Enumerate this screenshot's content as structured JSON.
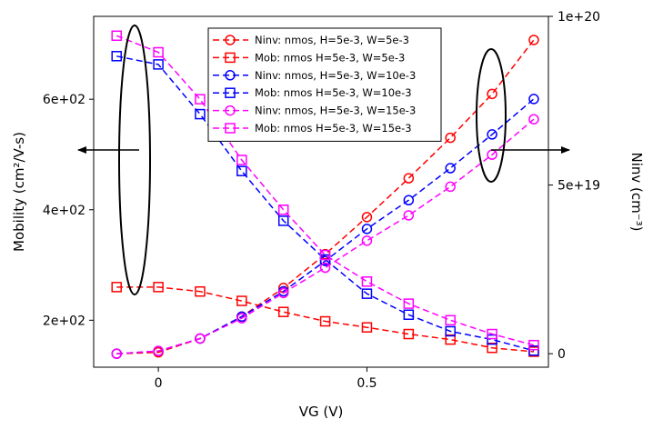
{
  "chart_data": {
    "type": "line",
    "x_axis": {
      "label": "VG (V)",
      "range": [
        -0.155,
        0.935
      ],
      "ticks": [
        0,
        0.5
      ],
      "tick_labels": [
        "0",
        "0.5"
      ]
    },
    "y_left": {
      "label": "Mobility (cm²/V-s)",
      "range": [
        115,
        750
      ],
      "ticks": [
        200,
        400,
        600
      ],
      "tick_labels": [
        "2e+02",
        "4e+02",
        "6e+02"
      ]
    },
    "y_right": {
      "label": "Ninv (cm⁻³)",
      "range": [
        -4e+18,
        1e+20
      ],
      "ticks": [
        0,
        5e+19,
        1e+20
      ],
      "tick_labels": [
        "0",
        "5e+19",
        "1e+20"
      ]
    },
    "grid": false,
    "legend_placement": "top-center",
    "series": [
      {
        "name": "Ninv: nmos, H=5e-3, W=5e-3",
        "axis": "right",
        "marker": "circle",
        "color": "#ff0000",
        "x": [
          -0.1,
          0,
          0.1,
          0.2,
          0.3,
          0.4,
          0.5,
          0.6,
          0.7,
          0.8,
          0.9
        ],
        "y": [
          0,
          4e+17,
          4.5e+18,
          1.1e+19,
          1.95e+19,
          2.95e+19,
          4.05e+19,
          5.2e+19,
          6.4e+19,
          7.7e+19,
          9.3e+19
        ]
      },
      {
        "name": "Mob: nmos H=5e-3, W=5e-3",
        "axis": "left",
        "marker": "square",
        "color": "#ff0000",
        "x": [
          -0.1,
          0,
          0.1,
          0.2,
          0.3,
          0.4,
          0.5,
          0.6,
          0.7,
          0.8,
          0.9
        ],
        "y": [
          260,
          260,
          252,
          235,
          215,
          198,
          187,
          175,
          165,
          150,
          143
        ]
      },
      {
        "name": "Ninv: nmos, H=5e-3, W=10e-3",
        "axis": "right",
        "marker": "circle",
        "color": "#0000ff",
        "x": [
          -0.1,
          0,
          0.1,
          0.2,
          0.3,
          0.4,
          0.5,
          0.6,
          0.7,
          0.8,
          0.9
        ],
        "y": [
          0,
          8e+17,
          4.5e+18,
          1.1e+19,
          1.85e+19,
          2.75e+19,
          3.7e+19,
          4.55e+19,
          5.5e+19,
          6.5e+19,
          7.55e+19
        ]
      },
      {
        "name": "Mob: nmos H=5e-3, W=10e-3",
        "axis": "left",
        "marker": "square",
        "color": "#0000ff",
        "x": [
          -0.1,
          0,
          0.1,
          0.2,
          0.3,
          0.4,
          0.5,
          0.6,
          0.7,
          0.8,
          0.9
        ],
        "y": [
          678,
          663,
          573,
          470,
          380,
          310,
          248,
          210,
          180,
          165,
          145
        ]
      },
      {
        "name": "Ninv: nmos, H=5e-3, W=15e-3",
        "axis": "right",
        "marker": "circle",
        "color": "#ff00ff",
        "x": [
          -0.1,
          0,
          0.1,
          0.2,
          0.3,
          0.4,
          0.5,
          0.6,
          0.7,
          0.8,
          0.9
        ],
        "y": [
          0,
          8e+17,
          4.5e+18,
          1.05e+19,
          1.8e+19,
          2.55e+19,
          3.35e+19,
          4.1e+19,
          4.95e+19,
          5.9e+19,
          6.95e+19
        ]
      },
      {
        "name": "Mob: nmos H=5e-3, W=15e-3",
        "axis": "left",
        "marker": "square",
        "color": "#ff00ff",
        "x": [
          -0.1,
          0,
          0.1,
          0.2,
          0.3,
          0.4,
          0.5,
          0.6,
          0.7,
          0.8,
          0.9
        ],
        "y": [
          715,
          685,
          600,
          490,
          400,
          318,
          270,
          230,
          200,
          175,
          155
        ]
      }
    ],
    "annotations": [
      {
        "kind": "ellipse-with-arrow",
        "points_to": "left",
        "groups": "mobility curves"
      },
      {
        "kind": "ellipse-with-arrow",
        "points_to": "right",
        "groups": "Ninv curves"
      }
    ]
  }
}
